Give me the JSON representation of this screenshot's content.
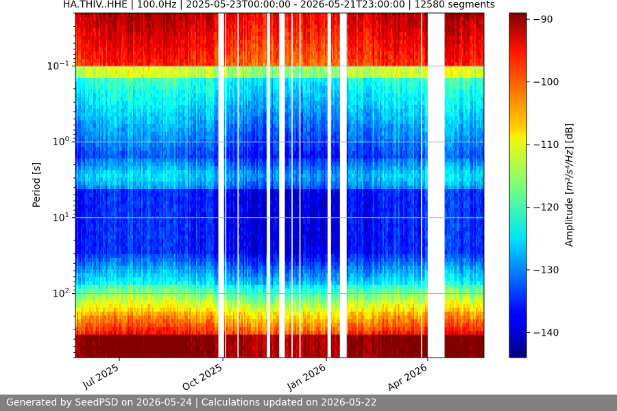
{
  "chart_data": {
    "type": "heatmap",
    "title": "HA.THIV..HHE | 100.0Hz | 2025-05-23T00:00:00 - 2026-05-21T23:00:00 | 12580 segments",
    "ylabel": "Period [s]",
    "y_scale": "log",
    "y_reversed": true,
    "y_ticks": [
      {
        "value": 0.1,
        "base": "10",
        "exp": "−1"
      },
      {
        "value": 1,
        "base": "10",
        "exp": "0"
      },
      {
        "value": 10,
        "base": "10",
        "exp": "1"
      },
      {
        "value": 100,
        "base": "10",
        "exp": "2"
      }
    ],
    "ylim": [
      0.02,
      700
    ],
    "xlim": [
      "2025-05-23",
      "2026-05-21"
    ],
    "x_ticks": [
      {
        "date": "2025-07-01",
        "label": "Jul 2025"
      },
      {
        "date": "2025-10-01",
        "label": "Oct 2025"
      },
      {
        "date": "2026-01-01",
        "label": "Jan 2026"
      },
      {
        "date": "2026-04-01",
        "label": "Apr 2026"
      }
    ],
    "grid": true,
    "gaps": [
      [
        "2025-09-27",
        "2025-10-02"
      ],
      [
        "2025-10-03",
        "2025-10-04"
      ],
      [
        "2025-10-14",
        "2025-10-15"
      ],
      [
        "2025-11-09",
        "2025-11-12"
      ],
      [
        "2025-11-20",
        "2025-11-25"
      ],
      [
        "2025-12-01",
        "2025-12-02"
      ],
      [
        "2025-12-08",
        "2025-12-09"
      ],
      [
        "2026-01-02",
        "2026-01-05"
      ],
      [
        "2026-01-13",
        "2026-01-19"
      ],
      [
        "2026-03-26",
        "2026-03-27"
      ],
      [
        "2026-04-01",
        "2026-04-16"
      ]
    ],
    "colorbar": {
      "label_prefix": "Amplitude [",
      "label_math": "m²/s⁴/Hz",
      "label_suffix": "] [dB]",
      "range": [
        -144,
        -89
      ],
      "ticks": [
        -90,
        -100,
        -110,
        -120,
        -130,
        -140
      ],
      "colormap": "jet"
    }
  },
  "footer": {
    "text": "Generated by SeedPSD on 2026-05-24 | Calculations updated on 2026-05-22"
  }
}
